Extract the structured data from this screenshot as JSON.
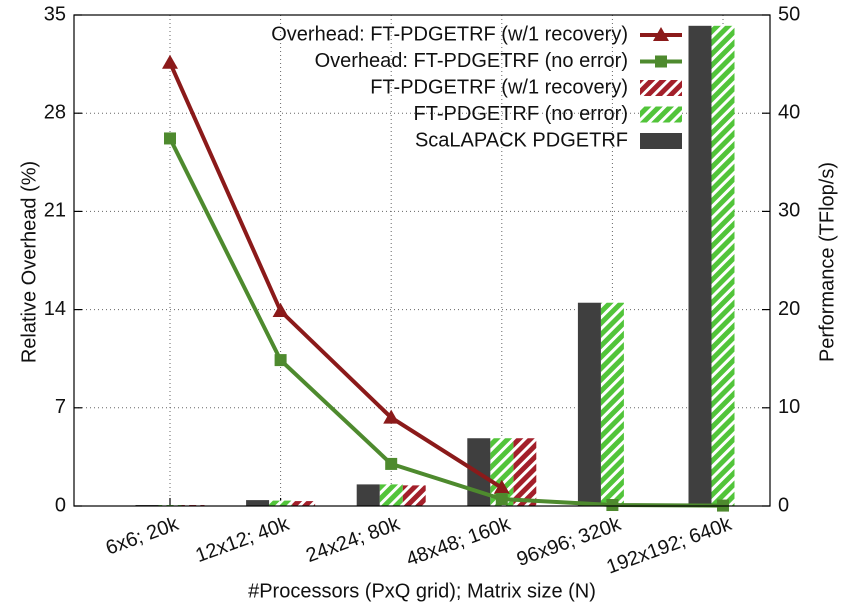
{
  "chart_data": {
    "type": "bar_line",
    "xlabel": "#Processors (PxQ grid); Matrix size (N)",
    "ylabel": "Relative Overhead (%)",
    "y2label": "Performance (TFlop/s)",
    "categories": [
      "6x6; 20k",
      "12x12; 40k",
      "24x24; 80k",
      "48x48; 160k",
      "96x96; 320k",
      "192x192; 640k"
    ],
    "ylim": [
      0,
      35
    ],
    "yticks": [
      0,
      7,
      14,
      21,
      28,
      35
    ],
    "y2lim": [
      0,
      50
    ],
    "y2ticks": [
      0,
      10,
      20,
      30,
      40,
      50
    ],
    "grid": true,
    "legend": "upper right",
    "series": [
      {
        "name": "Overhead: FT-PDGETRF (w/1 recovery)",
        "type": "line",
        "marker": "triangle",
        "color": "#8b1a1a",
        "values": [
          31.6,
          13.9,
          6.3,
          1.3,
          null,
          null
        ]
      },
      {
        "name": "Overhead: FT-PDGETRF (no error)",
        "type": "line",
        "marker": "square",
        "color": "#4e8a2e",
        "values": [
          26.2,
          10.4,
          3.0,
          0.5,
          0.07,
          0.03
        ]
      },
      {
        "name": "FT-PDGETRF (w/1 recovery)",
        "type": "bar",
        "pattern": "hatched",
        "color": "#a31f2a",
        "axis": "y2",
        "values": [
          0.1,
          0.5,
          2.1,
          6.9,
          null,
          null
        ]
      },
      {
        "name": "FT-PDGETRF (no error)",
        "type": "bar",
        "pattern": "hatched",
        "color": "#52c43a",
        "axis": "y2",
        "values": [
          0.1,
          0.55,
          2.2,
          6.9,
          20.7,
          48.9
        ]
      },
      {
        "name": "ScaLAPACK PDGETRF",
        "type": "bar",
        "pattern": "solid",
        "color": "#3f3f3f",
        "axis": "y2",
        "values": [
          0.1,
          0.6,
          2.2,
          6.9,
          20.7,
          48.9
        ]
      }
    ]
  }
}
